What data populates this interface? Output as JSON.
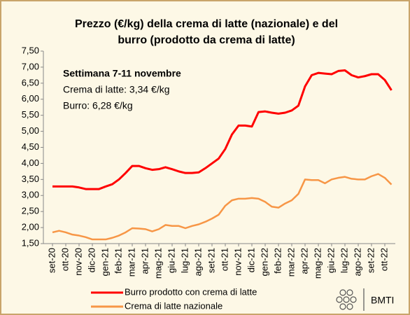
{
  "chart_data": {
    "type": "line",
    "title": [
      "Prezzo (€/kg) della crema di latte (nazionale) e del",
      "burro (prodotto da crema di latte)"
    ],
    "annotations": [
      "Settimana 7-11 novembre",
      "Crema di latte: 3,34 €/kg",
      "Burro: 6,28 €/kg"
    ],
    "logo": "BMTI",
    "categories": [
      "set-20",
      null,
      "ott-20",
      null,
      "nov-20",
      null,
      "dic-20",
      null,
      "gen-21",
      null,
      "feb-21",
      null,
      "mar-21",
      null,
      "apr-21",
      null,
      "mag-21",
      null,
      "giu-21",
      null,
      "lug-21",
      null,
      "ago-21",
      null,
      "set-21",
      null,
      "ott-21",
      null,
      "nov-21",
      null,
      "dic-21",
      null,
      "gen-22",
      null,
      "feb-22",
      null,
      "mar-22",
      null,
      "apr-22",
      null,
      "mag-22",
      null,
      "giu-22",
      null,
      "lug-22",
      null,
      "ago-22",
      null,
      "set-22",
      null,
      "ott-22",
      null
    ],
    "series": [
      {
        "name": "Burro prodotto con crema di latte",
        "color": "#ff0000",
        "values": [
          3.28,
          3.28,
          3.28,
          3.28,
          3.25,
          3.2,
          3.2,
          3.2,
          3.28,
          3.35,
          3.5,
          3.7,
          3.92,
          3.92,
          3.85,
          3.8,
          3.82,
          3.88,
          3.82,
          3.75,
          3.7,
          3.7,
          3.72,
          3.85,
          4.0,
          4.15,
          4.45,
          4.9,
          5.18,
          5.18,
          5.15,
          5.6,
          5.62,
          5.58,
          5.55,
          5.58,
          5.65,
          5.8,
          6.4,
          6.75,
          6.82,
          6.8,
          6.78,
          6.88,
          6.9,
          6.75,
          6.68,
          6.72,
          6.78,
          6.78,
          6.6,
          6.28
        ]
      },
      {
        "name": "Crema di latte nazionale",
        "color": "#f79646",
        "values": [
          1.85,
          1.9,
          1.85,
          1.78,
          1.75,
          1.7,
          1.63,
          1.63,
          1.63,
          1.68,
          1.75,
          1.85,
          1.98,
          1.97,
          1.95,
          1.88,
          1.95,
          2.08,
          2.05,
          2.05,
          1.98,
          2.05,
          2.1,
          2.18,
          2.28,
          2.4,
          2.68,
          2.85,
          2.9,
          2.9,
          2.92,
          2.9,
          2.8,
          2.65,
          2.62,
          2.75,
          2.85,
          3.05,
          3.5,
          3.48,
          3.48,
          3.38,
          3.5,
          3.55,
          3.58,
          3.52,
          3.5,
          3.5,
          3.6,
          3.67,
          3.55,
          3.34
        ]
      }
    ],
    "ylim": [
      1.5,
      7.5
    ],
    "yticks": [
      {
        "value": 1.5,
        "label": "1,50"
      },
      {
        "value": 2,
        "label": "2,00"
      },
      {
        "value": 2.5,
        "label": "2,50"
      },
      {
        "value": 3,
        "label": "3,00"
      },
      {
        "value": 3.5,
        "label": "3,50"
      },
      {
        "value": 4,
        "label": "4,00"
      },
      {
        "value": 4.5,
        "label": "4,50"
      },
      {
        "value": 5,
        "label": "5,00"
      },
      {
        "value": 5.5,
        "label": "5,50"
      },
      {
        "value": 6,
        "label": "6,00"
      },
      {
        "value": 6.5,
        "label": "6,50"
      },
      {
        "value": 7,
        "label": "7,00"
      },
      {
        "value": 7.5,
        "label": "7,50"
      }
    ],
    "grid": false
  }
}
